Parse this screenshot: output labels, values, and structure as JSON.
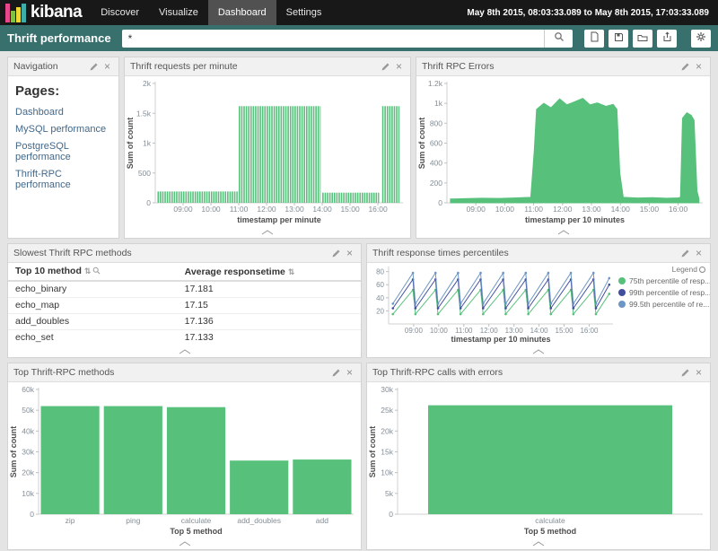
{
  "topbar": {
    "logo_text": "kibana",
    "logo_bar_colors": [
      "#e8478b",
      "#7fc142",
      "#efd836",
      "#3caeac"
    ],
    "nav_items": [
      {
        "label": "Discover",
        "active": false
      },
      {
        "label": "Visualize",
        "active": false
      },
      {
        "label": "Dashboard",
        "active": true
      },
      {
        "label": "Settings",
        "active": false
      }
    ],
    "time_range": "May 8th 2015, 08:03:33.089 to May 8th 2015, 17:03:33.089"
  },
  "toolbar": {
    "dashboard_title": "Thrift performance",
    "query_value": "*",
    "icon_names": [
      "search-icon",
      "new-dashboard-icon",
      "save-dashboard-icon",
      "load-dashboard-icon",
      "share-dashboard-icon",
      "settings-gear-icon"
    ]
  },
  "panels": {
    "navigation": {
      "title": "Navigation",
      "heading": "Pages:",
      "links": [
        "Dashboard",
        "MySQL performance",
        "PostgreSQL performance",
        "Thrift-RPC performance"
      ]
    },
    "requests": {
      "title": "Thrift requests per minute"
    },
    "errors": {
      "title": "Thrift RPC Errors"
    },
    "slowest": {
      "title": "Slowest Thrift RPC methods",
      "table": {
        "columns": [
          "Top 10 method",
          "Average responsetime"
        ],
        "rows": [
          [
            "echo_binary",
            "17.181"
          ],
          [
            "echo_map",
            "17.15"
          ],
          [
            "add_doubles",
            "17.136"
          ],
          [
            "echo_set",
            "17.133"
          ]
        ]
      }
    },
    "percentiles": {
      "title": "Thrift response times percentiles",
      "legend_title": "Legend",
      "legend": [
        {
          "label": "75th percentile of resp...",
          "color": "#57c17b"
        },
        {
          "label": "99th percentile of resp...",
          "color": "#414e9e"
        },
        {
          "label": "99.5th percentile of re...",
          "color": "#6c96c3"
        }
      ]
    },
    "top_methods": {
      "title": "Top Thrift-RPC methods"
    },
    "top_errors": {
      "title": "Top Thrift-RPC calls with errors"
    }
  },
  "chart_data": [
    {
      "type": "bar",
      "title": "Thrift requests per minute",
      "xlabel": "timestamp per minute",
      "ylabel": "Sum of count",
      "color": "#57c17b",
      "xlim": [
        8.0,
        16.9
      ],
      "ylim": [
        0,
        2000
      ],
      "yticks": [
        {
          "v": 0,
          "label": "0"
        },
        {
          "v": 500,
          "label": "500"
        },
        {
          "v": 1000,
          "label": "1k"
        },
        {
          "v": 1500,
          "label": "1.5k"
        },
        {
          "v": 2000,
          "label": "2k"
        }
      ],
      "xticks": [
        {
          "v": 9,
          "label": "09:00"
        },
        {
          "v": 10,
          "label": "10:00"
        },
        {
          "v": 11,
          "label": "11:00"
        },
        {
          "v": 12,
          "label": "12:00"
        },
        {
          "v": 13,
          "label": "13:00"
        },
        {
          "v": 14,
          "label": "14:00"
        },
        {
          "v": 15,
          "label": "15:00"
        },
        {
          "v": 16,
          "label": "16:00"
        }
      ],
      "segments": [
        {
          "from": 8.08,
          "to": 10.99,
          "value": 190
        },
        {
          "from": 11.0,
          "to": 13.92,
          "value": 1620
        },
        {
          "from": 14.0,
          "to": 16.07,
          "value": 170
        },
        {
          "from": 16.15,
          "to": 16.8,
          "value": 1620
        }
      ]
    },
    {
      "type": "area",
      "title": "Thrift RPC Errors",
      "xlabel": "timestamp per 10 minutes",
      "ylabel": "Sum of count",
      "color": "#57c17b",
      "xlim": [
        8.0,
        16.85
      ],
      "ylim": [
        0,
        1200
      ],
      "yticks": [
        {
          "v": 0,
          "label": "0"
        },
        {
          "v": 200,
          "label": "200"
        },
        {
          "v": 400,
          "label": "400"
        },
        {
          "v": 600,
          "label": "600"
        },
        {
          "v": 800,
          "label": "800"
        },
        {
          "v": 1000,
          "label": "1k"
        },
        {
          "v": 1200,
          "label": "1.2k"
        }
      ],
      "xticks": [
        {
          "v": 9,
          "label": "09:00"
        },
        {
          "v": 10,
          "label": "10:00"
        },
        {
          "v": 11,
          "label": "11:00"
        },
        {
          "v": 12,
          "label": "12:00"
        },
        {
          "v": 13,
          "label": "13:00"
        },
        {
          "v": 14,
          "label": "14:00"
        },
        {
          "v": 15,
          "label": "15:00"
        },
        {
          "v": 16,
          "label": "16:00"
        }
      ],
      "points": [
        [
          8.12,
          38
        ],
        [
          8.6,
          42
        ],
        [
          9.2,
          46
        ],
        [
          9.8,
          44
        ],
        [
          10.4,
          50
        ],
        [
          10.9,
          55
        ],
        [
          11.02,
          520
        ],
        [
          11.1,
          940
        ],
        [
          11.35,
          1000
        ],
        [
          11.6,
          955
        ],
        [
          11.9,
          1045
        ],
        [
          12.15,
          985
        ],
        [
          12.45,
          1020
        ],
        [
          12.7,
          1050
        ],
        [
          12.95,
          985
        ],
        [
          13.2,
          1005
        ],
        [
          13.5,
          970
        ],
        [
          13.75,
          990
        ],
        [
          13.88,
          940
        ],
        [
          13.98,
          300
        ],
        [
          14.1,
          55
        ],
        [
          14.6,
          48
        ],
        [
          15.1,
          52
        ],
        [
          15.6,
          46
        ],
        [
          16.0,
          50
        ],
        [
          16.08,
          55
        ],
        [
          16.15,
          850
        ],
        [
          16.3,
          905
        ],
        [
          16.45,
          880
        ],
        [
          16.55,
          830
        ],
        [
          16.65,
          120
        ],
        [
          16.72,
          40
        ]
      ]
    },
    {
      "type": "line",
      "title": "Thrift response times percentiles",
      "xlabel": "timestamp per 10 minutes",
      "ylabel": "",
      "legend_position": "right",
      "xlim": [
        8.0,
        16.95
      ],
      "ylim": [
        0,
        85
      ],
      "yticks": [
        {
          "v": 20,
          "label": "20"
        },
        {
          "v": 40,
          "label": "40"
        },
        {
          "v": 60,
          "label": "60"
        },
        {
          "v": 80,
          "label": "80"
        }
      ],
      "xticks": [
        {
          "v": 9,
          "label": "09:00"
        },
        {
          "v": 10,
          "label": "10:00"
        },
        {
          "v": 11,
          "label": "11:00"
        },
        {
          "v": 12,
          "label": "12:00"
        },
        {
          "v": 13,
          "label": "13:00"
        },
        {
          "v": 14,
          "label": "14:00"
        },
        {
          "v": 15,
          "label": "15:00"
        },
        {
          "v": 16,
          "label": "16:00"
        }
      ],
      "series": [
        {
          "name": "75th percentile of resp...",
          "color": "#57c17b",
          "points": [
            [
              8.17,
              15
            ],
            [
              8.97,
              52
            ],
            [
              9.07,
              15
            ],
            [
              9.87,
              52
            ],
            [
              9.97,
              15
            ],
            [
              10.77,
              52
            ],
            [
              10.87,
              15
            ],
            [
              11.67,
              52
            ],
            [
              11.77,
              15
            ],
            [
              12.57,
              52
            ],
            [
              12.67,
              15
            ],
            [
              13.47,
              52
            ],
            [
              13.57,
              15
            ],
            [
              14.37,
              52
            ],
            [
              14.47,
              15
            ],
            [
              15.27,
              52
            ],
            [
              15.37,
              15
            ],
            [
              16.17,
              52
            ],
            [
              16.27,
              15
            ],
            [
              16.8,
              46
            ]
          ]
        },
        {
          "name": "99th percentile of resp...",
          "color": "#414e9e",
          "points": [
            [
              8.17,
              24
            ],
            [
              8.97,
              68
            ],
            [
              9.07,
              24
            ],
            [
              9.87,
              68
            ],
            [
              9.97,
              24
            ],
            [
              10.77,
              68
            ],
            [
              10.87,
              24
            ],
            [
              11.67,
              68
            ],
            [
              11.77,
              24
            ],
            [
              12.57,
              68
            ],
            [
              12.67,
              24
            ],
            [
              13.47,
              68
            ],
            [
              13.57,
              24
            ],
            [
              14.37,
              68
            ],
            [
              14.47,
              24
            ],
            [
              15.27,
              68
            ],
            [
              15.37,
              24
            ],
            [
              16.17,
              68
            ],
            [
              16.27,
              24
            ],
            [
              16.8,
              60
            ]
          ]
        },
        {
          "name": "99.5th percentile of re...",
          "color": "#6c96c3",
          "points": [
            [
              8.17,
              31
            ],
            [
              8.97,
              78
            ],
            [
              9.07,
              31
            ],
            [
              9.87,
              78
            ],
            [
              9.97,
              31
            ],
            [
              10.77,
              78
            ],
            [
              10.87,
              31
            ],
            [
              11.67,
              78
            ],
            [
              11.77,
              31
            ],
            [
              12.57,
              78
            ],
            [
              12.67,
              31
            ],
            [
              13.47,
              78
            ],
            [
              13.57,
              31
            ],
            [
              14.37,
              78
            ],
            [
              14.47,
              31
            ],
            [
              15.27,
              78
            ],
            [
              15.37,
              31
            ],
            [
              16.17,
              78
            ],
            [
              16.27,
              31
            ],
            [
              16.8,
              70
            ]
          ]
        }
      ]
    },
    {
      "type": "bar",
      "title": "Top Thrift-RPC methods",
      "xlabel": "Top 5 method",
      "ylabel": "Sum of count",
      "color": "#57c17b",
      "ylim": [
        0,
        60000
      ],
      "yticks": [
        {
          "v": 0,
          "label": "0"
        },
        {
          "v": 10000,
          "label": "10k"
        },
        {
          "v": 20000,
          "label": "20k"
        },
        {
          "v": 30000,
          "label": "30k"
        },
        {
          "v": 40000,
          "label": "40k"
        },
        {
          "v": 50000,
          "label": "50k"
        },
        {
          "v": 60000,
          "label": "60k"
        }
      ],
      "categories": [
        "zip",
        "ping",
        "calculate",
        "add_doubles",
        "add"
      ],
      "values": [
        52000,
        52000,
        51500,
        25800,
        26300
      ]
    },
    {
      "type": "bar",
      "title": "Top Thrift-RPC calls with errors",
      "xlabel": "Top 5 method",
      "ylabel": "Sum of count",
      "color": "#57c17b",
      "ylim": [
        0,
        30000
      ],
      "yticks": [
        {
          "v": 0,
          "label": "0"
        },
        {
          "v": 5000,
          "label": "5k"
        },
        {
          "v": 10000,
          "label": "10k"
        },
        {
          "v": 15000,
          "label": "15k"
        },
        {
          "v": 20000,
          "label": "20k"
        },
        {
          "v": 25000,
          "label": "25k"
        },
        {
          "v": 30000,
          "label": "30k"
        }
      ],
      "categories": [
        "calculate"
      ],
      "values": [
        26200
      ]
    }
  ]
}
